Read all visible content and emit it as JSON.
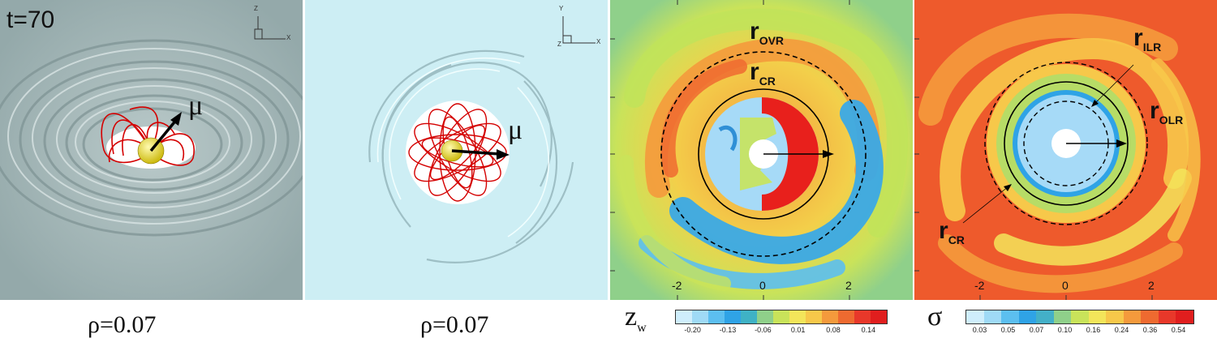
{
  "panels": {
    "p1": {
      "time_label": "t=70",
      "vector_label": "μ",
      "caption": "ρ=0.07",
      "axes": {
        "a": "Z",
        "b": "X"
      }
    },
    "p2": {
      "vector_label": "μ",
      "caption": "ρ=0.07",
      "axes": {
        "a": "Y",
        "b": "X",
        "c": "Z"
      }
    },
    "p3": {
      "labels": {
        "r_ovr": "r",
        "r_ovr_sub": "OVR",
        "r_cr": "r",
        "r_cr_sub": "CR"
      },
      "ticks": [
        "-2",
        "0",
        "2"
      ],
      "colorbar": {
        "symbol": "z",
        "symbol_sub": "w",
        "tick_labels": [
          "-0.20",
          "-0.13",
          "-0.06",
          "0.01",
          "0.08",
          "0.14"
        ],
        "colors": [
          "#cfeefc",
          "#9fdaf6",
          "#5cbff0",
          "#2fa3e6",
          "#3fb2c5",
          "#8fd08a",
          "#c9e35a",
          "#f3e55a",
          "#f7c84a",
          "#f49a3c",
          "#ee6a30",
          "#e8382a",
          "#e01e1e"
        ]
      }
    },
    "p4": {
      "labels": {
        "r_ilr": "r",
        "r_ilr_sub": "ILR",
        "r_olr": "r",
        "r_olr_sub": "OLR",
        "r_cr": "r",
        "r_cr_sub": "CR"
      },
      "ticks": [
        "-2",
        "0",
        "2"
      ],
      "colorbar": {
        "symbol": "σ",
        "tick_labels": [
          "0.03",
          "0.05",
          "0.07",
          "0.10",
          "0.16",
          "0.24",
          "0.36",
          "0.54"
        ],
        "colors": [
          "#cfeefc",
          "#9fdaf6",
          "#5cbff0",
          "#2fa3e6",
          "#43b0c8",
          "#8fd08a",
          "#c9e35a",
          "#f3e55a",
          "#f7c84a",
          "#f49a3c",
          "#ee6a30",
          "#e8382a",
          "#e01e1e"
        ]
      }
    }
  }
}
